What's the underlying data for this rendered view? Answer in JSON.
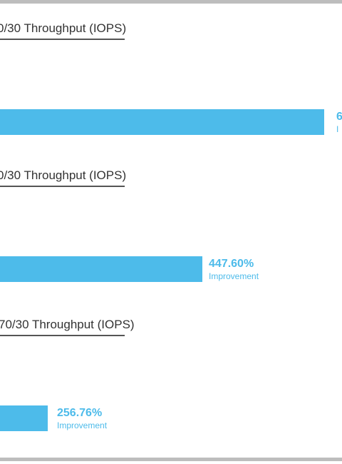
{
  "colors": {
    "bar": "#4dbbea",
    "value_text": "#4dbbea",
    "title_text": "#333333",
    "title_rule": "#555555",
    "frame": "#bdbdbd"
  },
  "chart_data": [
    {
      "type": "bar",
      "title": "0/30 Throughput (IOPS)",
      "categories": [
        ""
      ],
      "series": [
        {
          "values": [
            6
          ]
        }
      ],
      "value_label": "6",
      "caption": "I"
    },
    {
      "type": "bar",
      "title": "0/30 Throughput (IOPS)",
      "categories": [
        ""
      ],
      "series": [
        {
          "values": [
            447.6
          ]
        }
      ],
      "value_label": "447.60%",
      "caption": "Improvement"
    },
    {
      "type": "bar",
      "title": "70/30 Throughput (IOPS)",
      "categories": [
        ""
      ],
      "series": [
        {
          "values": [
            256.76
          ]
        }
      ],
      "value_label": "256.76%",
      "caption": "Improvement"
    }
  ]
}
